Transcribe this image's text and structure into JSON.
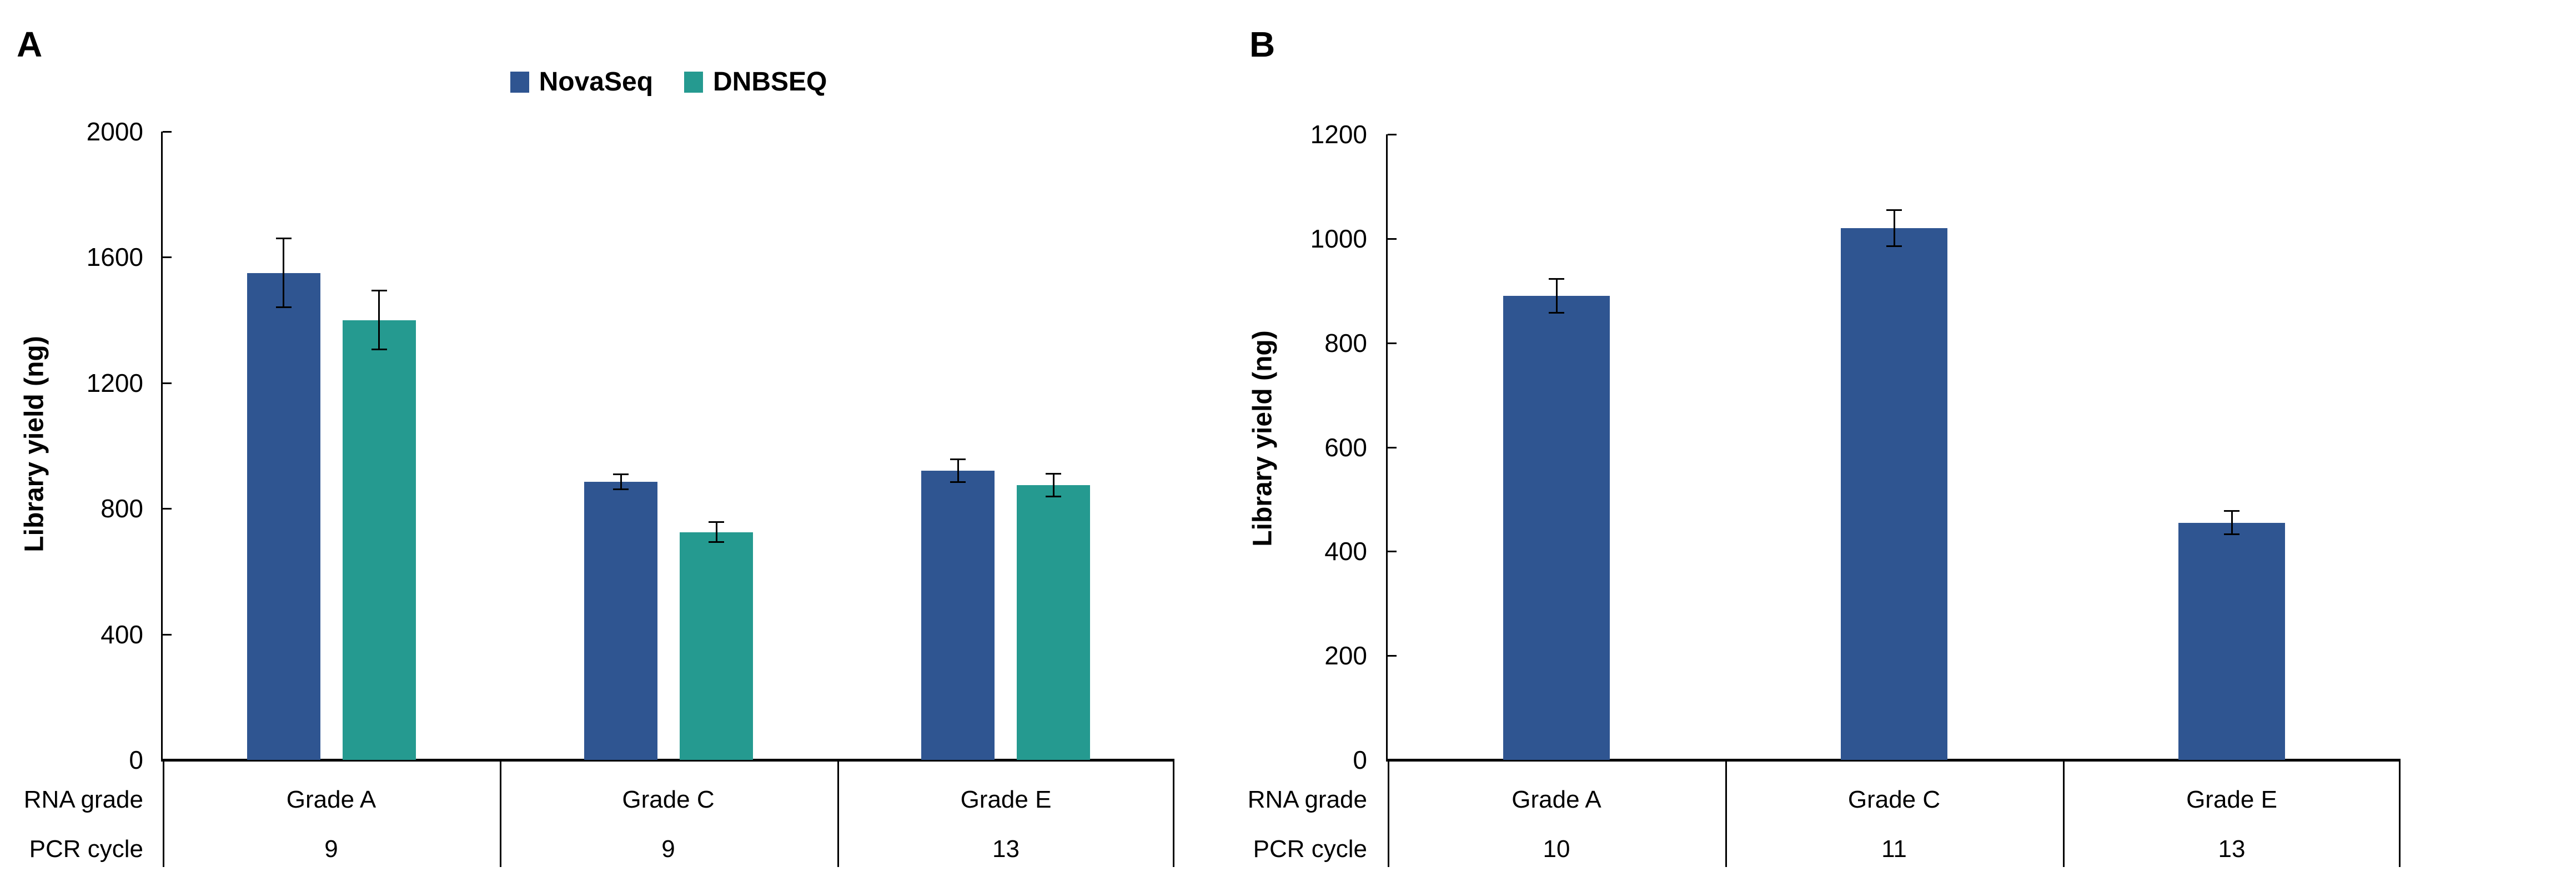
{
  "figure": {
    "background": "#ffffff",
    "text_color": "#000000",
    "description": "Two-panel bar figure of sequencing library yield by RNA grade and PCR cycle"
  },
  "chart_data": [
    {
      "type": "bar",
      "panel_label": "A",
      "ylabel": "Library yield (ng)",
      "ylim": [
        0,
        2000
      ],
      "yticks": [
        0,
        400,
        800,
        1200,
        1600,
        2000
      ],
      "grid": false,
      "error_bars": true,
      "legend_position": "top-center",
      "categories": [
        "Grade A",
        "Grade C",
        "Grade E"
      ],
      "row_headers": [
        "RNA grade",
        "PCR cycle"
      ],
      "pcr_cycles": [
        "9",
        "9",
        "13"
      ],
      "series": [
        {
          "name": "NovaSeq",
          "color": "#2F5591",
          "values": [
            1550,
            885,
            920
          ],
          "errors": [
            110,
            25,
            37
          ]
        },
        {
          "name": "DNBSEQ",
          "color": "#259A90",
          "values": [
            1400,
            725,
            875
          ],
          "errors": [
            95,
            33,
            37
          ]
        }
      ]
    },
    {
      "type": "bar",
      "panel_label": "B",
      "ylabel": "Library yield (ng)",
      "ylim": [
        0,
        1200
      ],
      "yticks": [
        0,
        200,
        400,
        600,
        800,
        1000,
        1200
      ],
      "grid": false,
      "error_bars": true,
      "legend_position": "none",
      "categories": [
        "Grade A",
        "Grade C",
        "Grade E"
      ],
      "row_headers": [
        "RNA grade",
        "PCR cycle"
      ],
      "pcr_cycles": [
        "10",
        "11",
        "13"
      ],
      "series": [
        {
          "name": "NovaSeq",
          "color": "#2F5591",
          "values": [
            890,
            1020,
            455
          ],
          "errors": [
            33,
            35,
            23
          ]
        }
      ]
    }
  ]
}
